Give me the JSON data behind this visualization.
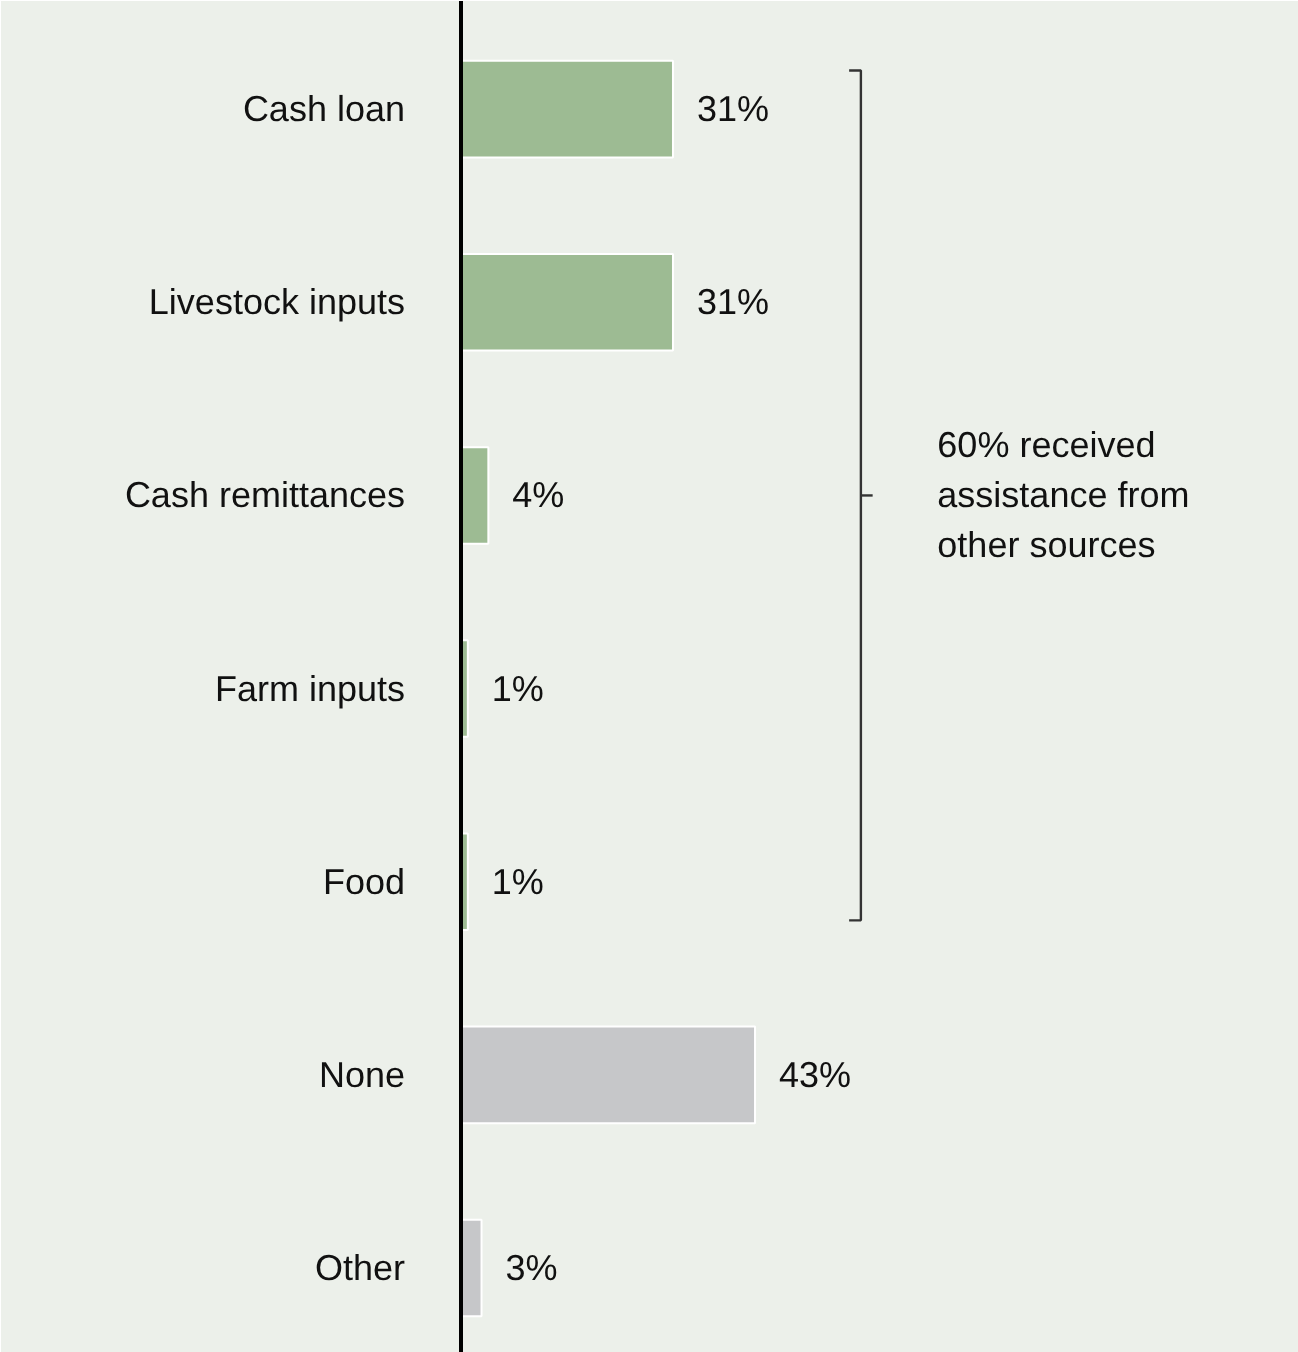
{
  "chart_data": {
    "type": "bar",
    "orientation": "horizontal",
    "categories": [
      "Cash loan",
      "Livestock inputs",
      "Cash remittances",
      "Farm inputs",
      "Food",
      "None",
      "Other"
    ],
    "values": [
      31,
      31,
      4,
      1,
      1,
      43,
      3
    ],
    "colors": [
      "#9dbb93",
      "#9dbb93",
      "#9dbb93",
      "#9dbb93",
      "#9dbb93",
      "#c6c7c9",
      "#c6c7c9"
    ],
    "value_labels": [
      "31%",
      "31%",
      "4%",
      "1%",
      "1%",
      "43%",
      "3%"
    ],
    "annotations": [
      "60% received\nassistance from\nother sources"
    ]
  }
}
